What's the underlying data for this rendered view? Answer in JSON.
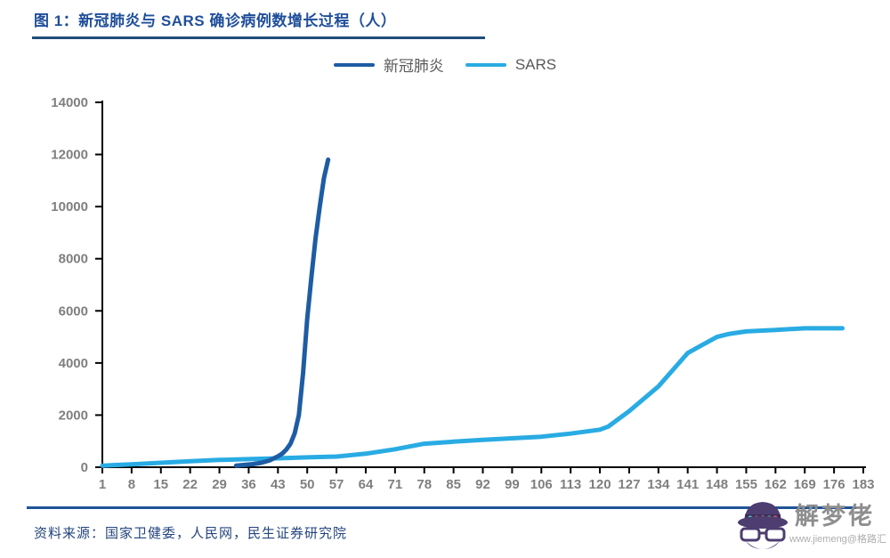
{
  "header": {
    "title": "图 1：新冠肺炎与 SARS 确诊病例数增长过程（人）"
  },
  "legend": [
    {
      "label": "新冠肺炎",
      "color": "#1E5CA3"
    },
    {
      "label": "SARS",
      "color": "#29ABE3"
    }
  ],
  "chart_data": {
    "type": "line",
    "title": "图 1：新冠肺炎与 SARS 确诊病例数增长过程（人）",
    "xlabel": "",
    "ylabel": "",
    "xlim": [
      1,
      183
    ],
    "ylim": [
      0,
      14000
    ],
    "x_ticks": [
      1,
      8,
      15,
      22,
      29,
      36,
      43,
      50,
      57,
      64,
      71,
      78,
      85,
      92,
      99,
      106,
      113,
      120,
      127,
      134,
      141,
      148,
      155,
      162,
      169,
      176,
      183
    ],
    "y_ticks": [
      0,
      2000,
      4000,
      6000,
      8000,
      10000,
      12000,
      14000
    ],
    "grid": false,
    "legend_position": "top-center",
    "series": [
      {
        "name": "新冠肺炎",
        "color": "#1E5CA3",
        "points": [
          [
            33,
            60
          ],
          [
            35,
            90
          ],
          [
            37,
            120
          ],
          [
            39,
            170
          ],
          [
            41,
            260
          ],
          [
            43,
            420
          ],
          [
            44,
            520
          ],
          [
            45,
            680
          ],
          [
            46,
            900
          ],
          [
            47,
            1300
          ],
          [
            48,
            2000
          ],
          [
            49,
            3600
          ],
          [
            50,
            5700
          ],
          [
            51,
            7300
          ],
          [
            52,
            8800
          ],
          [
            53,
            10000
          ],
          [
            54,
            11100
          ],
          [
            55,
            11800
          ]
        ]
      },
      {
        "name": "SARS",
        "color": "#29ABE3",
        "points": [
          [
            1,
            60
          ],
          [
            8,
            110
          ],
          [
            15,
            170
          ],
          [
            22,
            230
          ],
          [
            29,
            280
          ],
          [
            36,
            310
          ],
          [
            43,
            340
          ],
          [
            50,
            380
          ],
          [
            57,
            410
          ],
          [
            64,
            520
          ],
          [
            71,
            690
          ],
          [
            78,
            900
          ],
          [
            85,
            980
          ],
          [
            92,
            1050
          ],
          [
            99,
            1110
          ],
          [
            106,
            1170
          ],
          [
            113,
            1290
          ],
          [
            120,
            1440
          ],
          [
            122,
            1560
          ],
          [
            127,
            2150
          ],
          [
            134,
            3100
          ],
          [
            141,
            4380
          ],
          [
            144,
            4650
          ],
          [
            148,
            5000
          ],
          [
            151,
            5120
          ],
          [
            155,
            5210
          ],
          [
            162,
            5270
          ],
          [
            169,
            5330
          ],
          [
            178,
            5330
          ]
        ]
      }
    ]
  },
  "footer": {
    "source": "资料来源：国家卫健委，人民网，民生证券研究院"
  },
  "watermark": {
    "name": "解梦佬",
    "url_text": "www.jiemeng@格路汇"
  },
  "colors": {
    "title_text": "#1F4E9B",
    "title_underline": "#1F4E79",
    "bottom_divider": "#1F5597",
    "axis": "#000000",
    "tick_label": "#7F7F7F",
    "legend_text": "#595959",
    "source_text": "#24457E",
    "covid_line": "#1E5CA3",
    "sars_line": "#29ABE3"
  }
}
